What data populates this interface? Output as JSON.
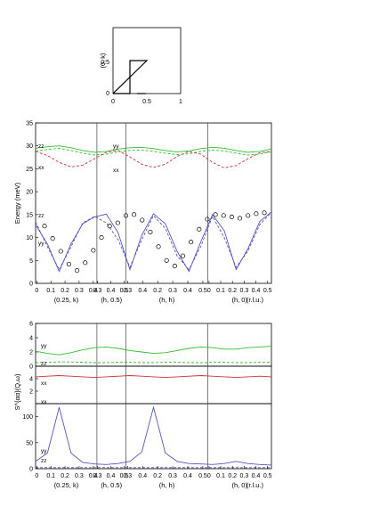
{
  "inset": {
    "ylabel": "(0, k)",
    "xticks": [
      "0",
      "0.5",
      "1"
    ],
    "yticks": [
      "0",
      "0.5"
    ]
  },
  "energy_panel": {
    "ylabel": "Energy (meV)",
    "yticks": [
      "0",
      "5",
      "10",
      "15",
      "20",
      "25",
      "30",
      "35"
    ],
    "curve_labels": [
      "zz",
      "yy",
      "xx",
      "zz",
      "yy",
      "xx"
    ]
  },
  "intensity_panel": {
    "ylabel": "S^{αα}(Q,ω)",
    "top_yticks": [
      "0",
      "2",
      "4",
      "6"
    ],
    "bottom_yticks": [
      "0",
      "50",
      "100"
    ],
    "labels": [
      "yy",
      "zz",
      "xx",
      "xx",
      "yy",
      "zz"
    ]
  },
  "segments": [
    {
      "name": "(0.25, k)",
      "ticks": [
        "0",
        "0.1",
        "0.2",
        "0.3",
        "0.4"
      ]
    },
    {
      "name": "(h, 0.5)",
      "ticks": [
        "0.3",
        "0.4",
        "0.5"
      ]
    },
    {
      "name": "(h, h)",
      "ticks": [
        "0.3",
        "0.4",
        "0.2",
        "0.3",
        "0.4",
        "0.5"
      ]
    },
    {
      "name": "(h, 0)",
      "ticks": [
        "0",
        "0.1",
        "0.2",
        "0.3",
        "0.4",
        "0.5"
      ]
    }
  ],
  "unit_label": "(r.l.u.)",
  "colors": {
    "green": "#33bb33",
    "red": "#cc3333",
    "blue": "#5555bb",
    "marker": "#000000"
  },
  "chart_data": [
    {
      "type": "line",
      "ylim": [
        0,
        35
      ],
      "x": [
        0,
        1,
        2,
        3,
        4,
        5,
        6,
        7,
        8,
        9,
        10,
        11,
        12,
        13,
        14,
        15,
        16,
        17,
        18,
        19,
        20
      ],
      "series": [
        {
          "name": "zz",
          "values": [
            29.5,
            29.8,
            30.0,
            29.6,
            29.0,
            28.6,
            28.8,
            29.3,
            29.6,
            29.7,
            29.4,
            29.0,
            28.7,
            28.9,
            29.4,
            29.7,
            29.5,
            29.0,
            28.6,
            28.8,
            29.3
          ]
        },
        {
          "name": "yy",
          "values": [
            28.9,
            29.2,
            29.5,
            29.0,
            28.4,
            28.0,
            28.2,
            28.7,
            29.0,
            29.1,
            28.8,
            28.4,
            28.1,
            28.3,
            28.8,
            29.1,
            28.9,
            28.4,
            28.0,
            28.2,
            28.7
          ]
        },
        {
          "name": "xx",
          "values": [
            28.8,
            27.9,
            26.4,
            25.4,
            25.8,
            27.2,
            28.6,
            29.0,
            27.6,
            26.0,
            25.3,
            26.0,
            27.7,
            28.8,
            28.2,
            26.4,
            25.2,
            25.7,
            27.2,
            28.5,
            28.8
          ]
        },
        {
          "name": "zz",
          "values": [
            13.4,
            8.0,
            3.0,
            8.0,
            13.2,
            14.6,
            13.2,
            9.5,
            3.5,
            9.5,
            14.8,
            12.0,
            6.0,
            3.0,
            8.0,
            14.6,
            10.0,
            3.5,
            7.0,
            12.8,
            15.5
          ]
        },
        {
          "name": "yy",
          "values": [
            12.8,
            8.6,
            2.6,
            8.6,
            13.0,
            14.5,
            15.1,
            11.0,
            3.0,
            10.5,
            15.2,
            13.0,
            7.0,
            2.6,
            9.0,
            15.0,
            11.5,
            3.0,
            7.5,
            13.5,
            15.6
          ]
        }
      ],
      "markers": [
        12.5,
        9.8,
        7.0,
        4.2,
        2.8,
        4.5,
        7.2,
        10.0,
        12.5,
        13.2,
        14.8,
        15.0,
        13.8,
        11.2,
        8.0,
        5.0,
        3.8,
        6.0,
        9.0,
        11.8,
        14.0,
        15.0,
        14.8,
        14.5,
        14.2,
        14.8,
        15.2,
        15.4
      ]
    },
    {
      "type": "line",
      "ylim": [
        0,
        6
      ],
      "x": [
        0,
        1,
        2,
        3,
        4,
        5,
        6,
        7,
        8,
        9,
        10,
        11,
        12,
        13,
        14,
        15,
        16,
        17,
        18,
        19,
        20
      ],
      "series": [
        {
          "name": "yy",
          "values": [
            2.1,
            1.8,
            1.6,
            1.9,
            2.3,
            2.6,
            2.7,
            2.5,
            2.2,
            2.0,
            1.8,
            1.9,
            2.2,
            2.5,
            2.7,
            2.6,
            2.4,
            2.4,
            2.6,
            2.7,
            2.8
          ]
        },
        {
          "name": "zz",
          "values": [
            0.5,
            0.55,
            0.6,
            0.6,
            0.55,
            0.5,
            0.5,
            0.55,
            0.55,
            0.5,
            0.5,
            0.55,
            0.55,
            0.5,
            0.5,
            0.55,
            0.55,
            0.5,
            0.5,
            0.55,
            0.55
          ]
        }
      ]
    },
    {
      "type": "line",
      "x": [
        0,
        1,
        2,
        3,
        4,
        5,
        6,
        7,
        8,
        9,
        10,
        11,
        12,
        13,
        14,
        15,
        16,
        17,
        18,
        19,
        20
      ],
      "series": [
        {
          "name": "xx",
          "values": [
            4.3,
            4.4,
            4.5,
            4.4,
            4.3,
            4.2,
            4.3,
            4.4,
            4.5,
            4.4,
            4.3,
            4.2,
            4.3,
            4.4,
            4.5,
            4.4,
            4.3,
            4.2,
            4.3,
            4.4,
            4.3
          ]
        }
      ]
    },
    {
      "type": "line",
      "ylim": [
        0,
        120
      ],
      "x": [
        0,
        1,
        2,
        3,
        4,
        5,
        6,
        7,
        8,
        9,
        10,
        11,
        12,
        13,
        14,
        15,
        16,
        17,
        18,
        19,
        20
      ],
      "series": [
        {
          "name": "yy",
          "values": [
            14,
            30,
            118,
            30,
            12,
            9,
            8,
            10,
            14,
            32,
            118,
            30,
            14,
            10,
            9,
            8,
            10,
            14,
            10,
            8,
            7
          ]
        },
        {
          "name": "zz",
          "values": [
            2,
            2,
            2,
            2,
            2,
            2,
            2,
            2,
            2,
            2,
            2,
            2,
            2,
            2,
            2,
            2,
            2,
            2,
            2,
            2,
            2
          ]
        }
      ]
    }
  ]
}
